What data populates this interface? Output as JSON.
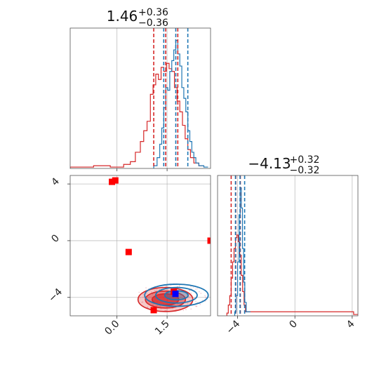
{
  "chart_data": {
    "type": "corner",
    "colors": {
      "red": "#d62728",
      "blue": "#1f77b4"
    },
    "panels": [
      {
        "id": "hist-p1",
        "type": "histogram",
        "title": {
          "value": "1.46",
          "plus": "+0.36",
          "minus": "−0.36"
        },
        "xlim": [
          -1.4,
          2.8
        ],
        "red_quantiles": [
          1.1,
          1.46,
          1.82
        ],
        "blue_quantiles": [
          1.4,
          1.76,
          2.12
        ],
        "red_hist": [
          [
            -1.4,
            0.01
          ],
          [
            -0.7,
            0.02
          ],
          [
            -0.2,
            0.01
          ],
          [
            0.2,
            0.03
          ],
          [
            0.4,
            0.05
          ],
          [
            0.55,
            0.12
          ],
          [
            0.7,
            0.2
          ],
          [
            0.8,
            0.28
          ],
          [
            0.9,
            0.35
          ],
          [
            1.0,
            0.55
          ],
          [
            1.08,
            0.62
          ],
          [
            1.16,
            0.7
          ],
          [
            1.24,
            0.66
          ],
          [
            1.32,
            0.75
          ],
          [
            1.4,
            0.72
          ],
          [
            1.48,
            0.78
          ],
          [
            1.56,
            0.74
          ],
          [
            1.64,
            0.72
          ],
          [
            1.72,
            0.6
          ],
          [
            1.8,
            0.5
          ],
          [
            1.88,
            0.42
          ],
          [
            1.96,
            0.32
          ],
          [
            2.04,
            0.22
          ],
          [
            2.12,
            0.14
          ],
          [
            2.2,
            0.08
          ],
          [
            2.3,
            0.04
          ],
          [
            2.45,
            0.02
          ]
        ],
        "blue_hist": [
          [
            1.1,
            0.02
          ],
          [
            1.2,
            0.08
          ],
          [
            1.28,
            0.18
          ],
          [
            1.34,
            0.3
          ],
          [
            1.4,
            0.45
          ],
          [
            1.46,
            0.6
          ],
          [
            1.52,
            0.58
          ],
          [
            1.58,
            0.72
          ],
          [
            1.64,
            0.8
          ],
          [
            1.7,
            0.88
          ],
          [
            1.76,
            0.95
          ],
          [
            1.82,
            0.85
          ],
          [
            1.88,
            0.76
          ],
          [
            1.94,
            0.6
          ],
          [
            2.0,
            0.52
          ],
          [
            2.06,
            0.42
          ],
          [
            2.12,
            0.28
          ],
          [
            2.18,
            0.2
          ],
          [
            2.24,
            0.12
          ],
          [
            2.3,
            0.08
          ],
          [
            2.36,
            0.04
          ],
          [
            2.45,
            0.02
          ],
          [
            2.6,
            0.01
          ]
        ]
      },
      {
        "id": "hist-p2",
        "type": "histogram",
        "title": {
          "value": "−4.13",
          "plus": "+0.32",
          "minus": "−0.32"
        },
        "xlim": [
          -5.4,
          4.4
        ],
        "xticks": [
          -4,
          0,
          4
        ],
        "xtick_labels": [
          "−4",
          "0",
          "4"
        ],
        "red_quantiles": [
          -4.45,
          -4.13,
          -3.81
        ],
        "blue_quantiles": [
          -4.15,
          -3.83,
          -3.51
        ],
        "red_hist": [
          [
            -4.75,
            0.02
          ],
          [
            -4.65,
            0.08
          ],
          [
            -4.55,
            0.15
          ],
          [
            -4.45,
            0.28
          ],
          [
            -4.35,
            0.4
          ],
          [
            -4.25,
            0.5
          ],
          [
            -4.15,
            0.58
          ],
          [
            -4.05,
            0.6
          ],
          [
            -3.95,
            0.55
          ],
          [
            -3.85,
            0.45
          ],
          [
            -3.75,
            0.3
          ],
          [
            -3.65,
            0.18
          ],
          [
            -3.55,
            0.08
          ],
          [
            -3.45,
            0.03
          ],
          [
            4.1,
            0.01
          ]
        ],
        "blue_hist": [
          [
            -4.2,
            0.03
          ],
          [
            -4.1,
            0.15
          ],
          [
            -4.0,
            0.4
          ],
          [
            -3.9,
            0.75
          ],
          [
            -3.82,
            0.95
          ],
          [
            -3.74,
            0.8
          ],
          [
            -3.66,
            0.5
          ],
          [
            -3.58,
            0.25
          ],
          [
            -3.5,
            0.1
          ],
          [
            -3.4,
            0.03
          ]
        ]
      },
      {
        "id": "scatter-p1-p2",
        "type": "scatter-contour",
        "xlim": [
          -1.4,
          2.8
        ],
        "ylim": [
          -5.3,
          4.6
        ],
        "xticks": [
          0.0,
          1.5
        ],
        "xtick_labels": [
          "0.0",
          "1.5"
        ],
        "yticks": [
          4,
          0,
          -4
        ],
        "ytick_labels": [
          "4",
          "0",
          "−4"
        ],
        "red_points": [
          [
            -0.15,
            4.15
          ],
          [
            -0.05,
            4.25
          ],
          [
            0.35,
            -0.8
          ],
          [
            2.8,
            0.0
          ],
          [
            1.1,
            -4.9
          ],
          [
            1.7,
            -3.6
          ]
        ],
        "blue_points": [
          [
            1.75,
            -3.75
          ]
        ],
        "red_contours": [
          {
            "cx": 1.45,
            "cy": -4.15,
            "rx": 0.82,
            "ry": 0.85
          },
          {
            "cx": 1.45,
            "cy": -4.15,
            "rx": 0.6,
            "ry": 0.6
          },
          {
            "cx": 1.45,
            "cy": -4.15,
            "rx": 0.4,
            "ry": 0.4
          }
        ],
        "blue_contours": [
          {
            "cx": 1.78,
            "cy": -3.85,
            "rx": 0.95,
            "ry": 0.78
          },
          {
            "cx": 1.78,
            "cy": -3.85,
            "rx": 0.62,
            "ry": 0.55
          },
          {
            "cx": 1.78,
            "cy": -3.85,
            "rx": 0.35,
            "ry": 0.32
          }
        ]
      }
    ]
  }
}
